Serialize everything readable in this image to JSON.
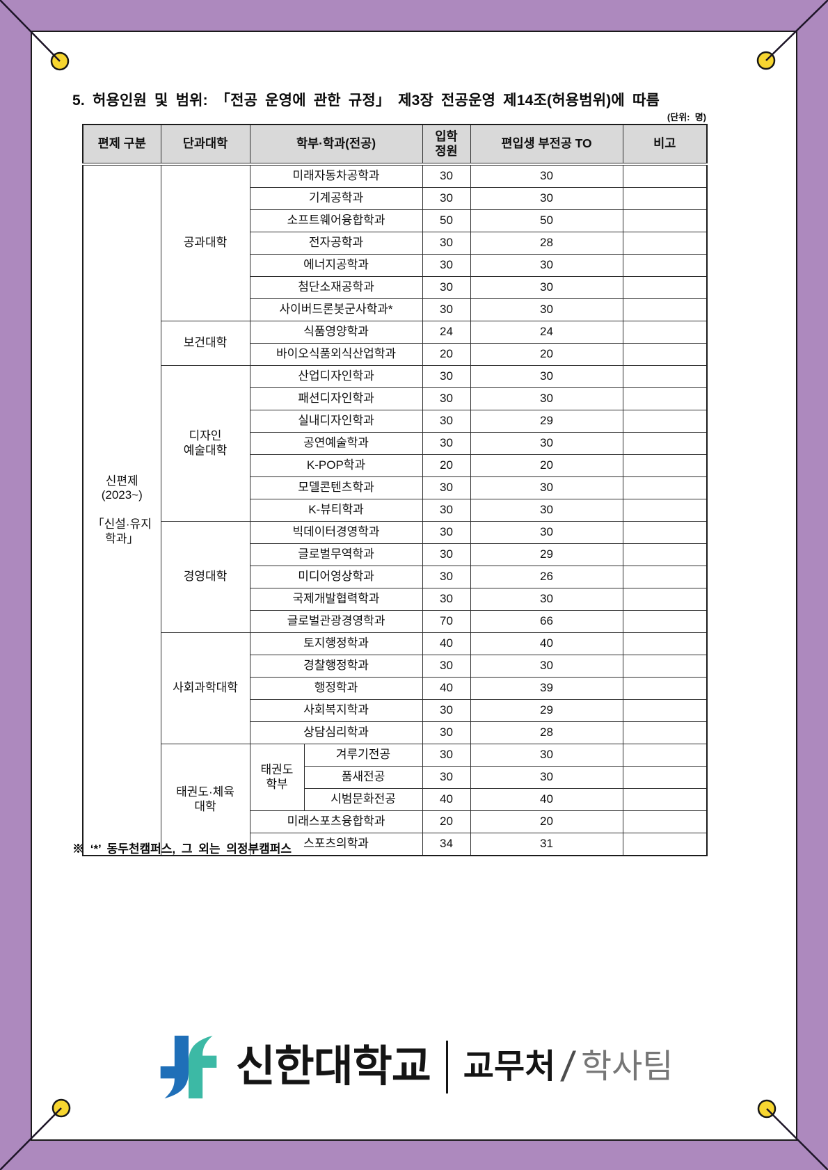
{
  "frame": {
    "purple": "#ad89be",
    "pin_yellow": "#f7d630",
    "string_color": "#1c1426"
  },
  "document": {
    "title": "5. 허용인원 및 범위: 「전공 운영에 관한 규정」 제3장 전공운영 제14조(허용범위)에 따름",
    "unit_note": "(단위:  명)",
    "footnote": "※ ‘*’ 동두천캠퍼스, 그 외는 의정부캠퍼스"
  },
  "table": {
    "headers": {
      "category": "편제 구분",
      "college": "단과대학",
      "dept": "학부·학과(전공)",
      "quota": "입학\n정원",
      "transfer_to": "편입생 부전공 TO",
      "note": "비고"
    },
    "category_label": "신편제\n(2023~)\n\n「신설·유지\n학과」",
    "groups": [
      {
        "college": "공과대학",
        "rows": [
          {
            "dept": "미래자동차공학과",
            "quota": "30",
            "to": "30",
            "note": ""
          },
          {
            "dept": "기계공학과",
            "quota": "30",
            "to": "30",
            "note": ""
          },
          {
            "dept": "소프트웨어융합학과",
            "quota": "50",
            "to": "50",
            "note": ""
          },
          {
            "dept": "전자공학과",
            "quota": "30",
            "to": "28",
            "note": ""
          },
          {
            "dept": "에너지공학과",
            "quota": "30",
            "to": "30",
            "note": ""
          },
          {
            "dept": "첨단소재공학과",
            "quota": "30",
            "to": "30",
            "note": ""
          },
          {
            "dept": "사이버드론봇군사학과*",
            "quota": "30",
            "to": "30",
            "note": ""
          }
        ]
      },
      {
        "college": "보건대학",
        "rows": [
          {
            "dept": "식품영양학과",
            "quota": "24",
            "to": "24",
            "note": ""
          },
          {
            "dept": "바이오식품외식산업학과",
            "quota": "20",
            "to": "20",
            "note": ""
          }
        ]
      },
      {
        "college": "디자인\n예술대학",
        "rows": [
          {
            "dept": "산업디자인학과",
            "quota": "30",
            "to": "30",
            "note": ""
          },
          {
            "dept": "패션디자인학과",
            "quota": "30",
            "to": "30",
            "note": ""
          },
          {
            "dept": "실내디자인학과",
            "quota": "30",
            "to": "29",
            "note": ""
          },
          {
            "dept": "공연예술학과",
            "quota": "30",
            "to": "30",
            "note": ""
          },
          {
            "dept": "K-POP학과",
            "quota": "20",
            "to": "20",
            "note": ""
          },
          {
            "dept": "모델콘텐츠학과",
            "quota": "30",
            "to": "30",
            "note": ""
          },
          {
            "dept": "K-뷰티학과",
            "quota": "30",
            "to": "30",
            "note": ""
          }
        ]
      },
      {
        "college": "경영대학",
        "rows": [
          {
            "dept": "빅데이터경영학과",
            "quota": "30",
            "to": "30",
            "note": ""
          },
          {
            "dept": "글로벌무역학과",
            "quota": "30",
            "to": "29",
            "note": ""
          },
          {
            "dept": "미디어영상학과",
            "quota": "30",
            "to": "26",
            "note": ""
          },
          {
            "dept": "국제개발협력학과",
            "quota": "30",
            "to": "30",
            "note": ""
          },
          {
            "dept": "글로벌관광경영학과",
            "quota": "70",
            "to": "66",
            "note": ""
          }
        ]
      },
      {
        "college": "사회과학대학",
        "rows": [
          {
            "dept": "토지행정학과",
            "quota": "40",
            "to": "40",
            "note": ""
          },
          {
            "dept": "경찰행정학과",
            "quota": "30",
            "to": "30",
            "note": ""
          },
          {
            "dept": "행정학과",
            "quota": "40",
            "to": "39",
            "note": ""
          },
          {
            "dept": "사회복지학과",
            "quota": "30",
            "to": "29",
            "note": ""
          },
          {
            "dept": "상담심리학과",
            "quota": "30",
            "to": "28",
            "note": ""
          }
        ]
      },
      {
        "college": "태권도·체육\n대학",
        "subgroup": {
          "label": "태권도\n학부",
          "count": 3
        },
        "rows": [
          {
            "dept": "겨루기전공",
            "quota": "30",
            "to": "30",
            "note": ""
          },
          {
            "dept": "품새전공",
            "quota": "30",
            "to": "30",
            "note": ""
          },
          {
            "dept": "시범문화전공",
            "quota": "40",
            "to": "40",
            "note": ""
          },
          {
            "dept": "미래스포츠융합학과",
            "quota": "20",
            "to": "20",
            "note": ""
          },
          {
            "dept": "스포츠의학과",
            "quota": "34",
            "to": "31",
            "note": ""
          }
        ]
      }
    ]
  },
  "footer_logo": {
    "university": "신한대학교",
    "office": "교무처",
    "slash": "/",
    "team": "학사팀",
    "mark_blue": "#1f6fb8",
    "mark_teal": "#3cb9a5"
  }
}
